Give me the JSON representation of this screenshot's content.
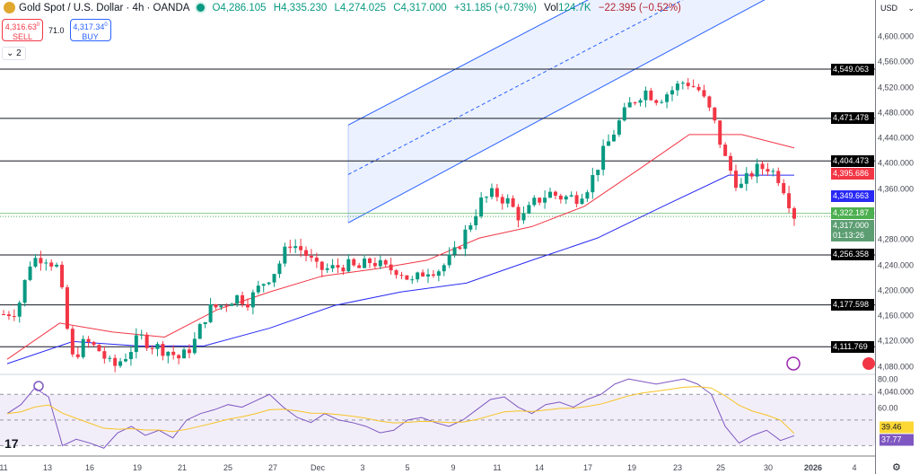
{
  "header": {
    "title": "Gold Spot / U.S. Dollar · 4h · OANDA",
    "open": "O4,286.105",
    "high": "H4,335.230",
    "low": "L4,274.025",
    "close": "C4,317.000",
    "change": "+31.185 (+0.73%)",
    "vol_label": "Vol",
    "vol": "124.7K",
    "vol_change": "−22.395 (−0.52%)"
  },
  "trade": {
    "sell_price": "4,316.63",
    "sell_sup": "0",
    "sell_label": "SELL",
    "spread": "71.0",
    "buy_price": "4,317.34",
    "buy_sup": "0",
    "buy_label": "BUY"
  },
  "collapse": {
    "label": "2"
  },
  "axis": {
    "currency": "USD",
    "price_labels": [
      "4,600.000",
      "4,560.000",
      "4,520.000",
      "4,480.000",
      "4,440.000",
      "4,400.000",
      "4,360.000",
      "4,280.000",
      "4,240.000",
      "4,200.000",
      "4,160.000",
      "4,120.000",
      "4,080.000",
      "4,040.000"
    ],
    "rsi_labels": [
      "80.00",
      "60.00"
    ],
    "tags": [
      {
        "value": "4,549.063",
        "color": "#000000"
      },
      {
        "value": "4,471.478",
        "color": "#000000"
      },
      {
        "value": "4,404.473",
        "color": "#000000"
      },
      {
        "value": "4,395.686",
        "color": "#f23645"
      },
      {
        "value": "4,349.663",
        "color": "#2929f5"
      },
      {
        "value": "4,322.187",
        "color": "#4caf50"
      },
      {
        "value": "4,317.000",
        "color": "#5c9e72"
      },
      {
        "value": "4,256.358",
        "color": "#000000"
      },
      {
        "value": "4,177.598",
        "color": "#000000"
      },
      {
        "value": "4,111.769",
        "color": "#000000"
      }
    ],
    "countdown": "01:13:26",
    "rsi_tags": [
      {
        "value": "39.46",
        "color": "#fdd835",
        "text": "#131722"
      },
      {
        "value": "37.77",
        "color": "#7e57c2",
        "text": "#ffffff"
      }
    ]
  },
  "time_axis": [
    "11",
    "13",
    "16",
    "19",
    "21",
    "25",
    "27",
    "Dec",
    "3",
    "5",
    "9",
    "11",
    "14",
    "17",
    "19",
    "23",
    "25",
    "30",
    "2026",
    "4"
  ],
  "chart_data": {
    "type": "candlestick",
    "symbol": "XAUUSD",
    "timeframe": "4h",
    "ylim": [
      4030,
      4640
    ],
    "horizontal_levels": [
      4549.063,
      4471.478,
      4404.473,
      4256.358,
      4177.598,
      4111.769
    ],
    "last_price": 4317.0,
    "approx_close_path": [
      4163,
      4170,
      4248,
      4255,
      4235,
      4092,
      4120,
      4106,
      4078,
      4099,
      4127,
      4113,
      4106,
      4092,
      4120,
      4170,
      4177,
      4191,
      4184,
      4212,
      4234,
      4276,
      4262,
      4234,
      4234,
      4241,
      4234,
      4248,
      4234,
      4234,
      4212,
      4234,
      4234,
      4255,
      4297,
      4340,
      4354,
      4340,
      4312,
      4340,
      4354,
      4347,
      4347,
      4368,
      4418,
      4460,
      4495,
      4516,
      4502,
      4516,
      4531,
      4516,
      4474,
      4403,
      4361,
      4389,
      4396,
      4375,
      4319
    ],
    "ma_red": [
      4092,
      4149,
      4135,
      4127,
      4170,
      4198,
      4223,
      4234,
      4248,
      4283,
      4301,
      4333,
      4389,
      4446,
      4446,
      4425
    ],
    "ma_blue": [
      4085,
      4120,
      4113,
      4113,
      4141,
      4177,
      4198,
      4212,
      4248,
      4283,
      4333,
      4382,
      4382
    ],
    "channel": {
      "upper": [
        4461,
        4850
      ],
      "middle": [
        4383,
        4772
      ],
      "lower": [
        4307,
        4706
      ]
    },
    "rsi": {
      "levels": [
        70,
        50,
        30
      ],
      "values": [
        55,
        62,
        75,
        68,
        30,
        35,
        32,
        28,
        40,
        45,
        38,
        42,
        36,
        50,
        55,
        58,
        62,
        60,
        65,
        70,
        60,
        52,
        48,
        55,
        50,
        48,
        45,
        40,
        42,
        50,
        52,
        48,
        45,
        50,
        58,
        66,
        68,
        60,
        55,
        62,
        64,
        60,
        66,
        70,
        78,
        82,
        80,
        78,
        80,
        82,
        78,
        70,
        45,
        32,
        38,
        42,
        34,
        37.77
      ],
      "signal_last": 39.46
    }
  }
}
